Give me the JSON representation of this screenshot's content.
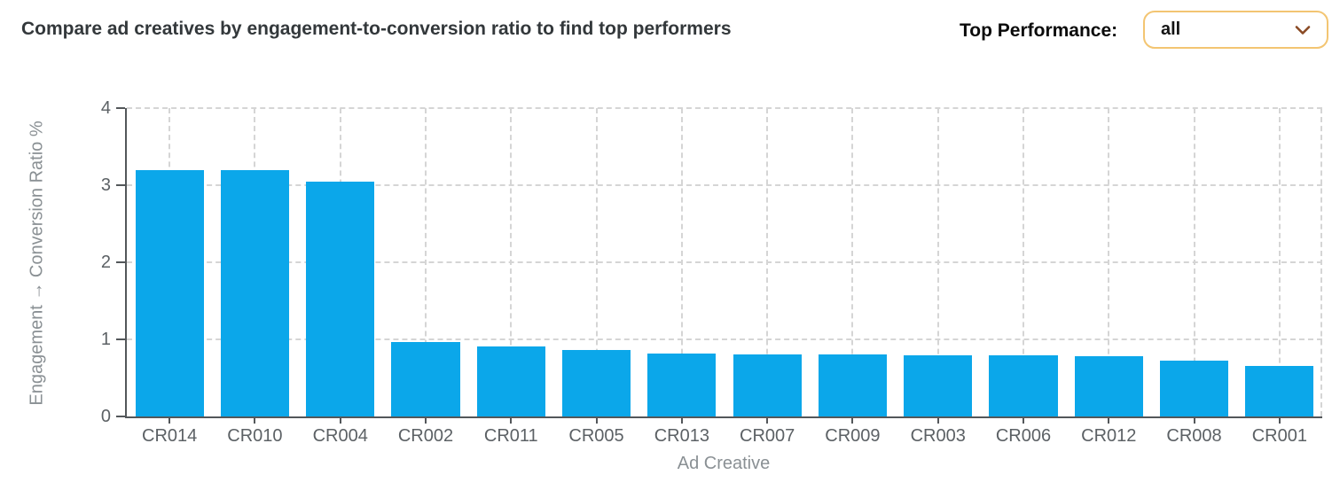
{
  "header": {
    "title": "Compare ad creatives by engagement-to-conversion ratio to find top performers"
  },
  "filter": {
    "label": "Top Performance:",
    "value": "all"
  },
  "icons": {
    "select_chevron": "chevron-down-icon"
  },
  "colors": {
    "bar": "#0ba7ea",
    "select_border": "#f3c572",
    "chevron": "#8a4a24",
    "axis": "#53575a",
    "grid": "#d5d5d5",
    "title_text": "#33383b",
    "tick_text": "#5c6165",
    "axis_title_text": "#8a9094"
  },
  "chart_data": {
    "type": "bar",
    "title": "",
    "xlabel": "Ad Creative",
    "ylabel": "Engagement → Conversion Ratio %",
    "categories": [
      "CR014",
      "CR010",
      "CR004",
      "CR002",
      "CR011",
      "CR005",
      "CR013",
      "CR007",
      "CR009",
      "CR003",
      "CR006",
      "CR012",
      "CR008",
      "CR001"
    ],
    "values": [
      3.2,
      3.19,
      3.05,
      0.96,
      0.91,
      0.86,
      0.82,
      0.81,
      0.8,
      0.79,
      0.79,
      0.78,
      0.72,
      0.65
    ],
    "ylim": [
      0,
      4
    ],
    "yticks": [
      0,
      1,
      2,
      3,
      4
    ],
    "grid": "dashed",
    "legend": "none",
    "bar_color": "#0ba7ea"
  }
}
